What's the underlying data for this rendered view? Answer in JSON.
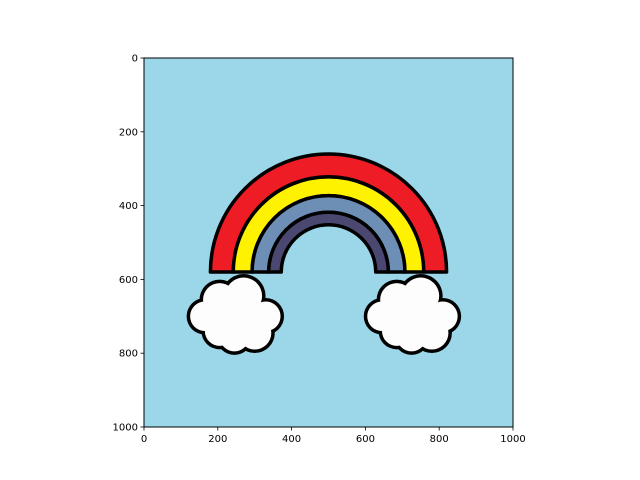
{
  "chart_data": {
    "type": "image",
    "xlim": [
      0,
      1000
    ],
    "ylim": [
      1000,
      0
    ],
    "y_axis_inverted": true,
    "xticks": [
      0,
      200,
      400,
      600,
      800,
      1000
    ],
    "yticks": [
      0,
      200,
      400,
      600,
      800,
      1000
    ],
    "xtick_labels": [
      "0",
      "200",
      "400",
      "600",
      "800",
      "1000"
    ],
    "ytick_labels": [
      "0",
      "200",
      "400",
      "600",
      "800",
      "1000"
    ],
    "grid": false,
    "image": {
      "subject": "rainbow-with-two-clouds",
      "background_color": "#9BD7E8",
      "outline_color": "#000000",
      "arc_center": [
        500,
        580
      ],
      "bands": [
        {
          "name": "red-band",
          "color": "#EE1C24",
          "outer_radius": 320,
          "inner_radius": 258
        },
        {
          "name": "yellow-band",
          "color": "#FFF200",
          "outer_radius": 258,
          "inner_radius": 207
        },
        {
          "name": "steel-blue-band",
          "color": "#6D8FB5",
          "outer_radius": 207,
          "inner_radius": 162
        },
        {
          "name": "slate-band",
          "color": "#4A4870",
          "outer_radius": 162,
          "inner_radius": 128
        }
      ],
      "clouds": [
        {
          "name": "left-cloud",
          "color": "#FDFDFD",
          "center": [
            260,
            690
          ]
        },
        {
          "name": "right-cloud",
          "color": "#FDFDFD",
          "center": [
            740,
            690
          ]
        }
      ]
    }
  }
}
